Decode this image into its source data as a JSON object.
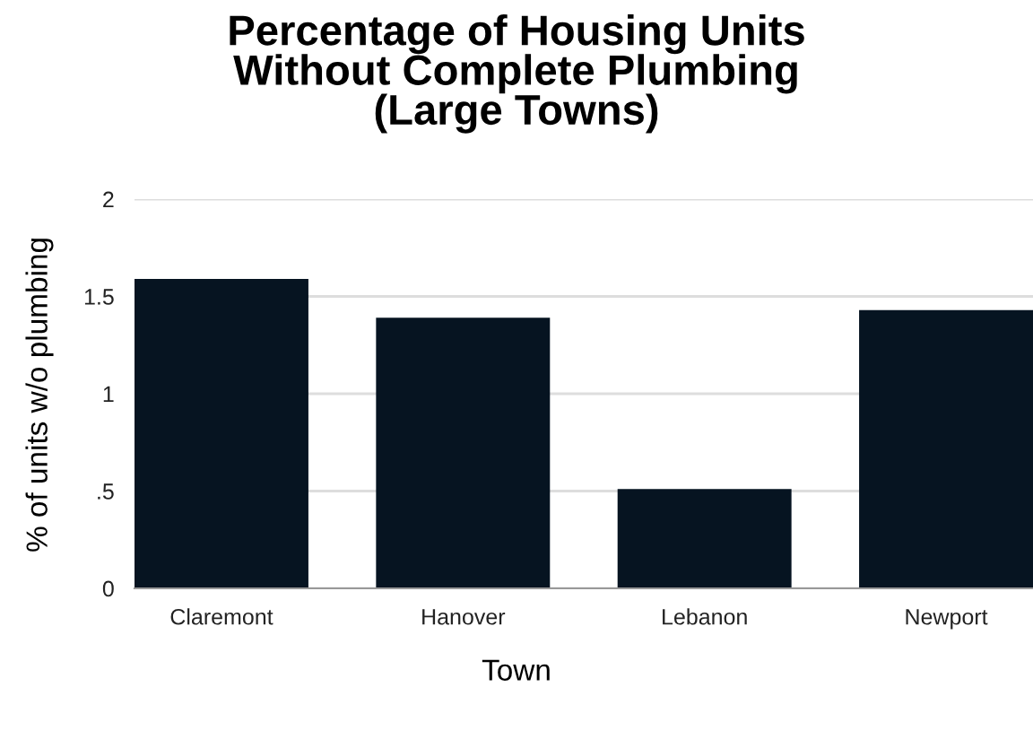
{
  "chart_data": {
    "type": "bar",
    "title": "Percentage of Housing Units\nWithout Complete Plumbing\n(Large Towns)",
    "xlabel": "Town",
    "ylabel": "% of units w/o plumbing",
    "categories": [
      "Claremont",
      "Hanover",
      "Lebanon",
      "Newport"
    ],
    "values": [
      1.59,
      1.39,
      0.51,
      1.43
    ],
    "color": "#061421",
    "ylim": [
      0,
      2
    ],
    "yticks": [
      0,
      {
        "value": 0.5,
        "label": ".5"
      },
      1,
      1.5,
      2
    ],
    "grid": "y",
    "legend": false
  }
}
